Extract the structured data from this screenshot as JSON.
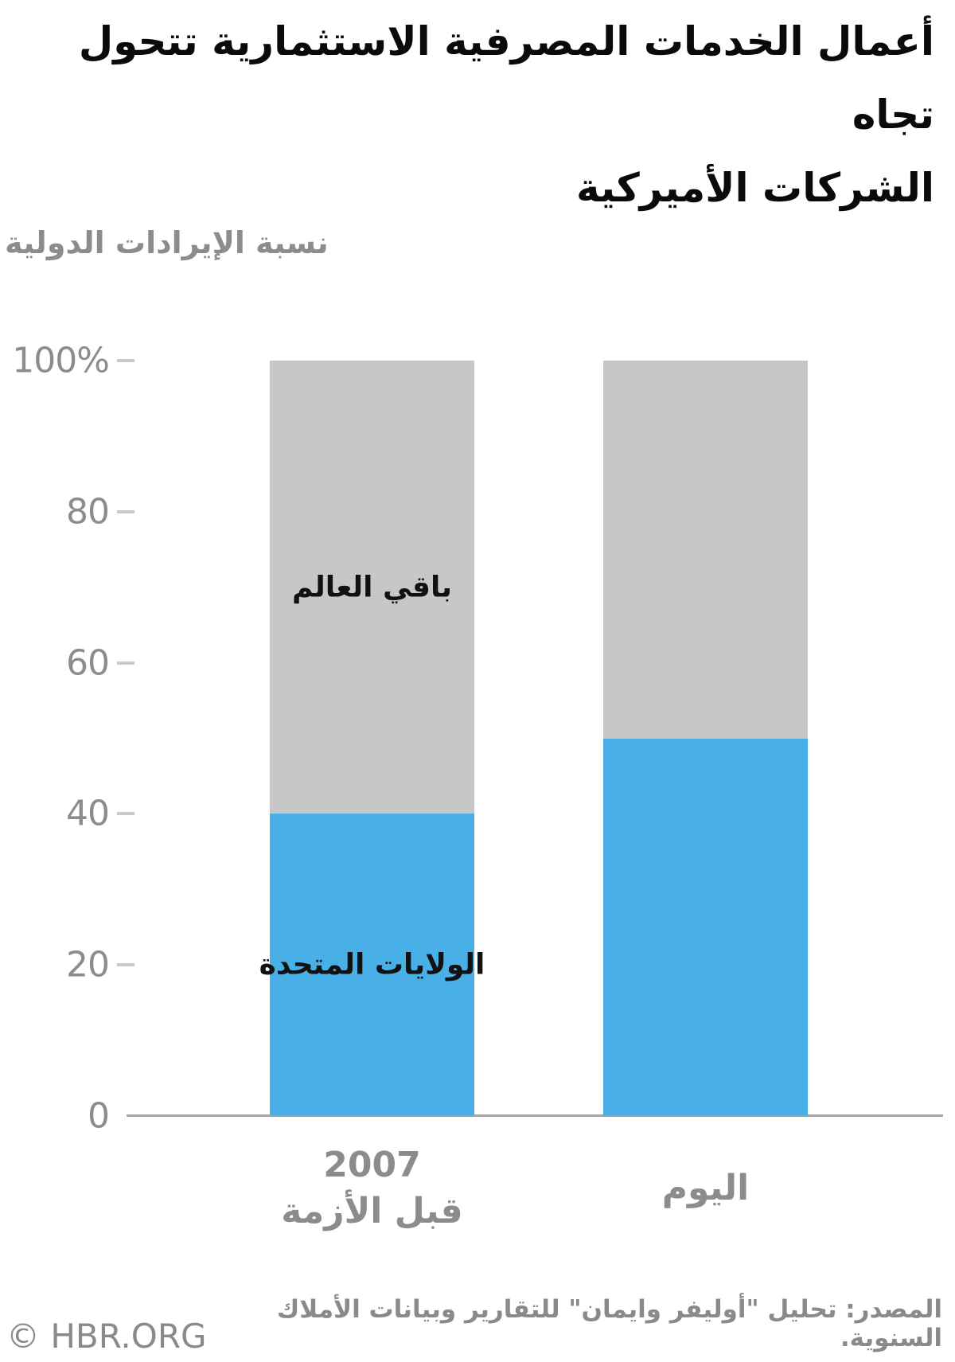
{
  "page": {
    "title_lines": [
      "أعمال الخدمات المصرفية الاستثمارية تتحول تجاه",
      "الشركات الأميركية"
    ],
    "footer": {
      "copyright": "© HBR.ORG",
      "source": "المصدر: تحليل \"أوليفر وايمان\" للتقارير وبيانات الأملاك السنوية."
    }
  },
  "chart_data": {
    "type": "bar",
    "stacked": true,
    "unit": "%",
    "title": "أعمال الخدمات المصرفية الاستثمارية تتحول تجاه الشركات الأميركية",
    "ylabel": "نسبة الإيرادات الدولية",
    "ylim": [
      0,
      100
    ],
    "grid": false,
    "legend_position": "labels-inside-first-bar",
    "yticks": [
      {
        "value": 100,
        "label": "100%"
      },
      {
        "value": 80,
        "label": "80"
      },
      {
        "value": 60,
        "label": "60"
      },
      {
        "value": 40,
        "label": "40"
      },
      {
        "value": 20,
        "label": "20"
      },
      {
        "value": 0,
        "label": "0"
      }
    ],
    "categories": [
      {
        "lines": [
          "2007",
          "قبل الأزمة"
        ]
      },
      {
        "lines": [
          "اليوم"
        ]
      }
    ],
    "series": [
      {
        "name": "الولايات المتحدة",
        "color": "#48B0E6",
        "values": [
          40,
          50
        ]
      },
      {
        "name": "باقي العالم",
        "color": "#C7C7C7",
        "values": [
          60,
          50
        ]
      }
    ],
    "series_labels_on_bar_index": 0
  }
}
